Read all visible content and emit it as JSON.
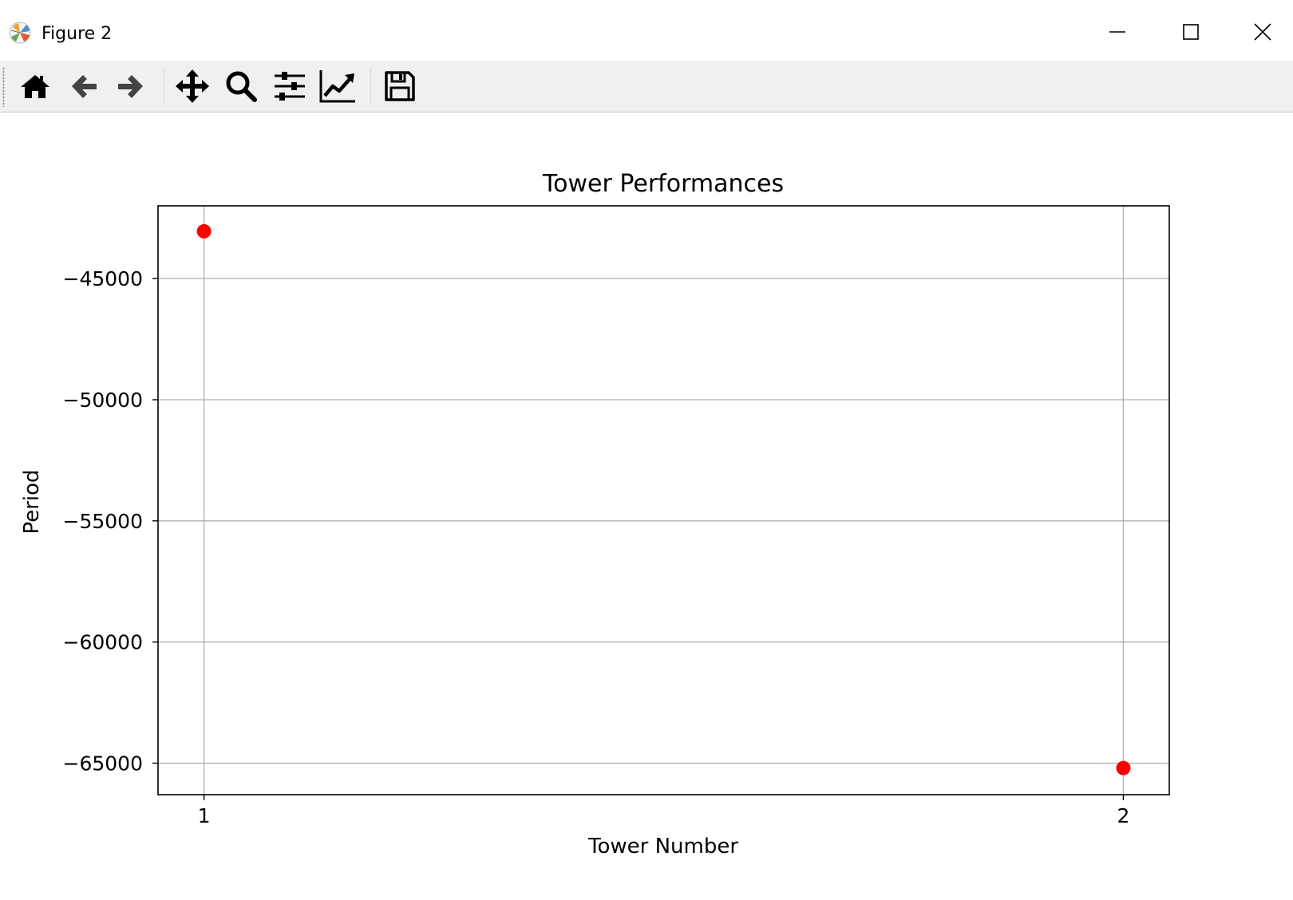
{
  "window": {
    "title": "Figure 2",
    "controls": [
      "minimize",
      "maximize",
      "close"
    ]
  },
  "toolbar": {
    "buttons": [
      {
        "name": "home",
        "icon": "home-icon"
      },
      {
        "name": "back",
        "icon": "arrow-left-icon"
      },
      {
        "name": "forward",
        "icon": "arrow-right-icon"
      },
      {
        "name": "pan",
        "icon": "move-arrows-icon"
      },
      {
        "name": "zoom",
        "icon": "magnifier-icon"
      },
      {
        "name": "configure-subplots",
        "icon": "sliders-icon"
      },
      {
        "name": "edit-axes",
        "icon": "line-chart-icon"
      },
      {
        "name": "save",
        "icon": "floppy-disk-icon"
      }
    ]
  },
  "chart_data": {
    "type": "scatter",
    "title": "Tower Performances",
    "xlabel": "Tower Number",
    "ylabel": "Period",
    "x": [
      1,
      2
    ],
    "y": [
      -43050,
      -65200
    ],
    "xlim": [
      0.95,
      2.05
    ],
    "ylim": [
      -66300,
      -42000
    ],
    "xticks": [
      1,
      2
    ],
    "xtick_labels": [
      "1",
      "2"
    ],
    "yticks": [
      -45000,
      -50000,
      -55000,
      -60000,
      -65000
    ],
    "ytick_labels": [
      "−45000",
      "−50000",
      "−55000",
      "−60000",
      "−65000"
    ],
    "grid": true,
    "marker_color": "#ff0000",
    "grid_color": "#b0b0b0"
  }
}
